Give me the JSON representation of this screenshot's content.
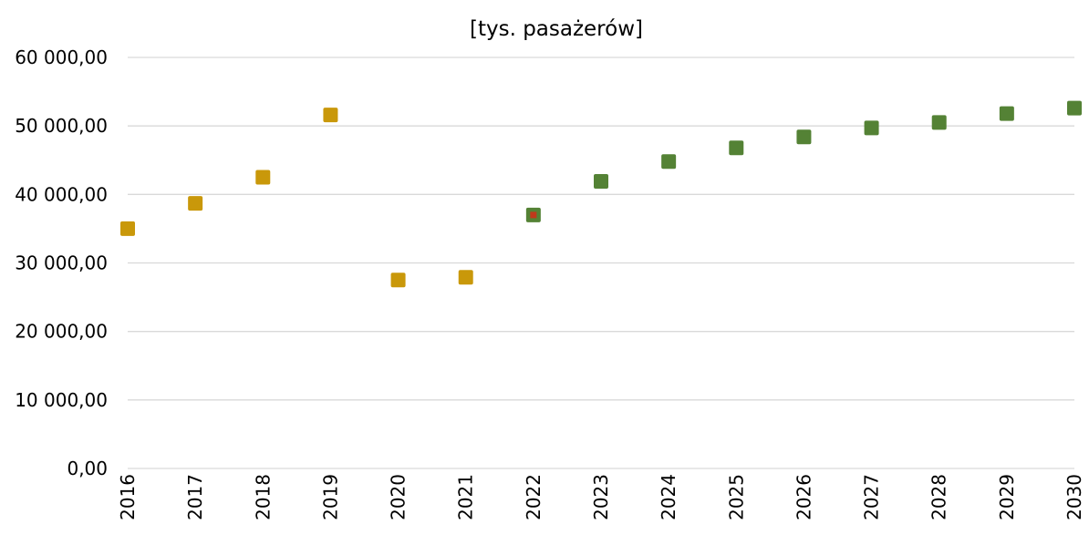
{
  "chart_data": {
    "type": "scatter",
    "title": "[tys. pasażerów]",
    "xlabel": "",
    "ylabel": "",
    "ylim": [
      0,
      60000
    ],
    "yticks": [
      0,
      10000,
      20000,
      30000,
      40000,
      50000,
      60000
    ],
    "ytick_labels": [
      "0,00",
      "10 000,00",
      "20 000,00",
      "30 000,00",
      "40 000,00",
      "50 000,00",
      "60 000,00"
    ],
    "grid": true,
    "legend": "none",
    "categories": [
      "2016",
      "2017",
      "2018",
      "2019",
      "2020",
      "2021",
      "2022",
      "2023",
      "2024",
      "2025",
      "2026",
      "2027",
      "2028",
      "2029",
      "2030"
    ],
    "series": [
      {
        "color": "#c9980a",
        "marker": "square",
        "x": [
          "2016",
          "2017",
          "2018",
          "2019",
          "2020",
          "2021"
        ],
        "values": [
          35000,
          38700,
          42500,
          51600,
          27500,
          27900
        ]
      },
      {
        "color": "#548235",
        "marker": "square",
        "x": [
          "2022",
          "2023",
          "2024",
          "2025",
          "2026",
          "2027",
          "2028",
          "2029",
          "2030"
        ],
        "values": [
          37000,
          41900,
          44800,
          46800,
          48400,
          49700,
          50500,
          51800,
          52600
        ]
      },
      {
        "color": "#c0391b",
        "marker": "small-square",
        "x": [
          "2022"
        ],
        "values": [
          37000
        ]
      }
    ]
  }
}
